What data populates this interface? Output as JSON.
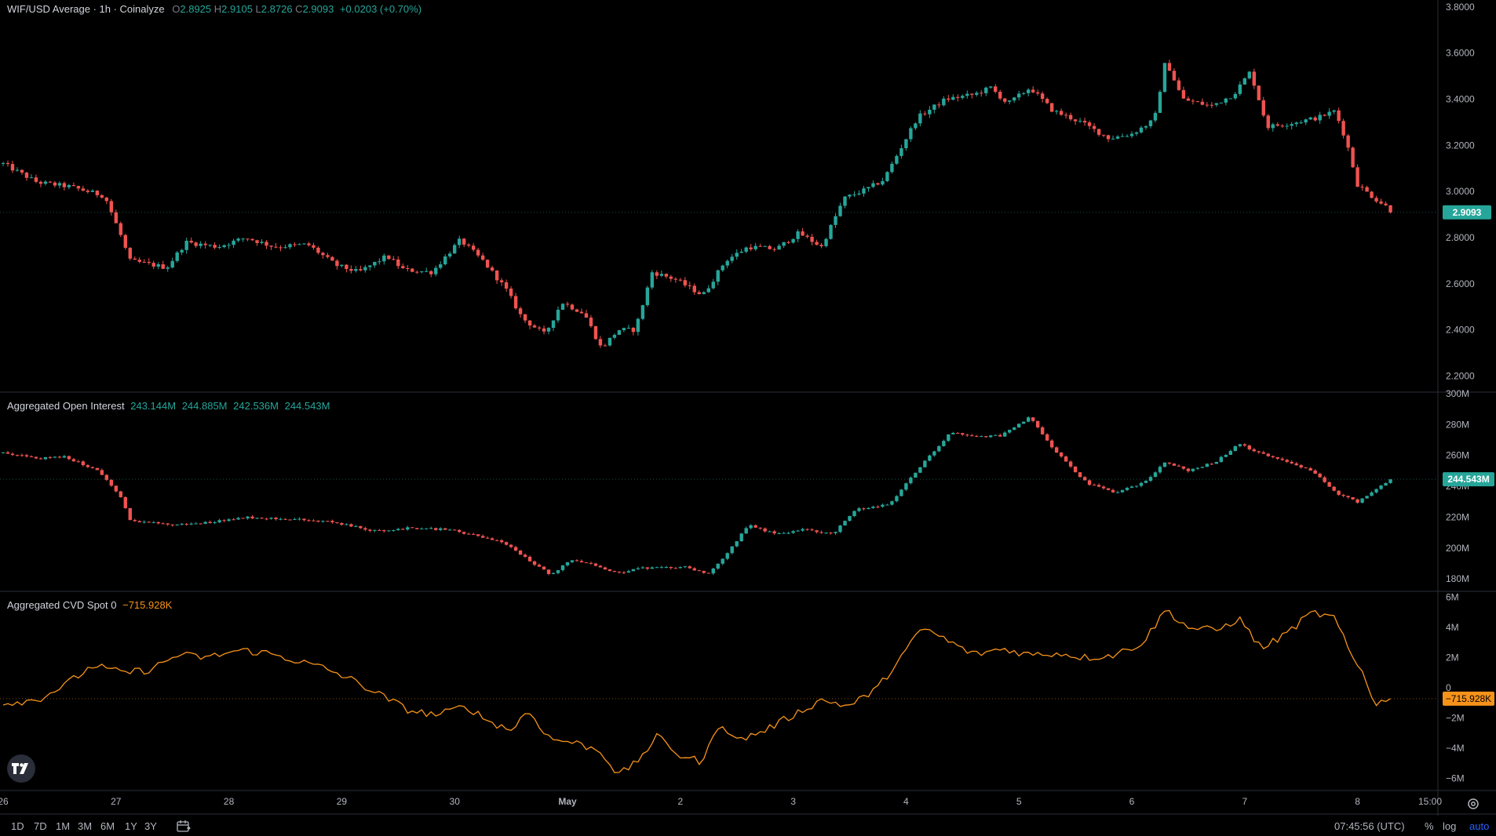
{
  "header": {
    "symbol": "WIF/USD Average · 1h · Coinalyze",
    "open_label": "O",
    "open": "2.8925",
    "high_label": "H",
    "high": "2.9105",
    "low_label": "L",
    "low": "2.8726",
    "close_label": "C",
    "close": "2.9093",
    "change": "+0.0203 (+0.70%)"
  },
  "oi_legend": {
    "title": "Aggregated Open Interest",
    "values": [
      "243.144M",
      "244.885M",
      "242.536M",
      "244.543M"
    ]
  },
  "cvd_legend": {
    "title": "Aggregated CVD Spot 0",
    "value": "−715.928K"
  },
  "price_badge": "2.9093",
  "oi_badge": "244.543M",
  "cvd_badge": "−715.928K",
  "colors": {
    "up": "#26a69a",
    "down": "#ef5350",
    "cvd": "#f7931a",
    "bg": "#000000",
    "text": "#d1d4dc"
  },
  "toolbar": {
    "ranges": [
      "1D",
      "7D",
      "1M",
      "3M",
      "6M",
      "1Y",
      "3Y"
    ],
    "calendar_icon": "calendar-icon",
    "time": "07:45:56 (UTC)",
    "percent": "%",
    "log": "log",
    "auto": "auto"
  },
  "chart_data": [
    {
      "type": "candlestick",
      "title": "WIF/USD Average · 1h · Coinalyze",
      "x_ticks": [
        "26",
        "27",
        "28",
        "29",
        "30",
        "May",
        "2",
        "3",
        "4",
        "5",
        "6",
        "7",
        "8",
        "15:00"
      ],
      "y_ticks": [
        "2.2000",
        "2.4000",
        "2.6000",
        "2.8000",
        "3.0000",
        "3.2000",
        "3.4000",
        "3.6000",
        "3.8000"
      ],
      "ylim": [
        2.13,
        3.83
      ],
      "x_range_days": [
        0,
        12.6
      ],
      "last": 2.9093,
      "path": [
        [
          0.0,
          3.12
        ],
        [
          0.3,
          3.04
        ],
        [
          0.6,
          3.02
        ],
        [
          0.9,
          2.98
        ],
        [
          1.05,
          2.8
        ],
        [
          1.12,
          2.7
        ],
        [
          1.45,
          2.67
        ],
        [
          1.62,
          2.78
        ],
        [
          1.9,
          2.76
        ],
        [
          2.15,
          2.8
        ],
        [
          2.4,
          2.76
        ],
        [
          2.7,
          2.77
        ],
        [
          2.95,
          2.68
        ],
        [
          3.15,
          2.65
        ],
        [
          3.4,
          2.72
        ],
        [
          3.55,
          2.66
        ],
        [
          3.8,
          2.65
        ],
        [
          4.05,
          2.79
        ],
        [
          4.25,
          2.7
        ],
        [
          4.45,
          2.58
        ],
        [
          4.6,
          2.45
        ],
        [
          4.8,
          2.38
        ],
        [
          4.95,
          2.52
        ],
        [
          5.15,
          2.47
        ],
        [
          5.3,
          2.32
        ],
        [
          5.45,
          2.4
        ],
        [
          5.6,
          2.4
        ],
        [
          5.75,
          2.65
        ],
        [
          5.95,
          2.62
        ],
        [
          6.2,
          2.55
        ],
        [
          6.4,
          2.7
        ],
        [
          6.6,
          2.76
        ],
        [
          6.85,
          2.75
        ],
        [
          7.05,
          2.82
        ],
        [
          7.25,
          2.76
        ],
        [
          7.45,
          2.97
        ],
        [
          7.65,
          3.01
        ],
        [
          7.8,
          3.05
        ],
        [
          8.1,
          3.32
        ],
        [
          8.35,
          3.4
        ],
        [
          8.6,
          3.42
        ],
        [
          8.75,
          3.45
        ],
        [
          8.9,
          3.38
        ],
        [
          9.1,
          3.45
        ],
        [
          9.3,
          3.35
        ],
        [
          9.55,
          3.3
        ],
        [
          9.8,
          3.23
        ],
        [
          10.0,
          3.25
        ],
        [
          10.2,
          3.31
        ],
        [
          10.3,
          3.57
        ],
        [
          10.45,
          3.4
        ],
        [
          10.7,
          3.37
        ],
        [
          10.9,
          3.42
        ],
        [
          11.05,
          3.52
        ],
        [
          11.2,
          3.28
        ],
        [
          11.45,
          3.3
        ],
        [
          11.65,
          3.32
        ],
        [
          11.8,
          3.35
        ],
        [
          11.9,
          3.22
        ],
        [
          12.0,
          3.03
        ],
        [
          12.15,
          2.97
        ],
        [
          12.3,
          2.92
        ],
        [
          12.33,
          2.9093
        ]
      ]
    },
    {
      "type": "candlestick",
      "title": "Aggregated Open Interest",
      "x_ticks": [
        "26",
        "27",
        "28",
        "29",
        "30",
        "May",
        "2",
        "3",
        "4",
        "5",
        "6",
        "7",
        "8",
        "15:00"
      ],
      "y_ticks": [
        "180M",
        "200M",
        "220M",
        "240M",
        "260M",
        "280M",
        "300M"
      ],
      "ylim": [
        172,
        301
      ],
      "last": 244.543,
      "path": [
        [
          0.0,
          262
        ],
        [
          0.3,
          258
        ],
        [
          0.55,
          259
        ],
        [
          0.85,
          250
        ],
        [
          1.05,
          232
        ],
        [
          1.12,
          218
        ],
        [
          1.5,
          215
        ],
        [
          1.75,
          216
        ],
        [
          2.15,
          220
        ],
        [
          2.5,
          219
        ],
        [
          2.9,
          217
        ],
        [
          3.3,
          211
        ],
        [
          3.6,
          213
        ],
        [
          3.95,
          212
        ],
        [
          4.25,
          207
        ],
        [
          4.45,
          203
        ],
        [
          4.7,
          190
        ],
        [
          4.85,
          183
        ],
        [
          5.05,
          193
        ],
        [
          5.45,
          184
        ],
        [
          5.65,
          187
        ],
        [
          5.85,
          187
        ],
        [
          6.05,
          188
        ],
        [
          6.25,
          183
        ],
        [
          6.45,
          200
        ],
        [
          6.6,
          215
        ],
        [
          6.85,
          209
        ],
        [
          7.1,
          212
        ],
        [
          7.35,
          209
        ],
        [
          7.55,
          225
        ],
        [
          7.85,
          228
        ],
        [
          8.15,
          255
        ],
        [
          8.4,
          275
        ],
        [
          8.65,
          272
        ],
        [
          8.85,
          273
        ],
        [
          9.1,
          285
        ],
        [
          9.3,
          265
        ],
        [
          9.6,
          242
        ],
        [
          9.85,
          236
        ],
        [
          10.1,
          242
        ],
        [
          10.3,
          256
        ],
        [
          10.5,
          250
        ],
        [
          10.75,
          256
        ],
        [
          10.95,
          268
        ],
        [
          11.1,
          262
        ],
        [
          11.35,
          257
        ],
        [
          11.6,
          250
        ],
        [
          11.8,
          236
        ],
        [
          12.0,
          230
        ],
        [
          12.3,
          244.5
        ]
      ]
    },
    {
      "type": "line",
      "title": "Aggregated CVD Spot 0",
      "x_ticks": [
        "26",
        "27",
        "28",
        "29",
        "30",
        "May",
        "2",
        "3",
        "4",
        "5",
        "6",
        "7",
        "8",
        "15:00"
      ],
      "y_ticks": [
        "−6M",
        "−4M",
        "−2M",
        "0",
        "2M",
        "4M",
        "6M"
      ],
      "ylim": [
        -6.8,
        6.4
      ],
      "last": -0.715928,
      "points": [
        [
          0,
          -1.0
        ],
        [
          0.3,
          -0.8
        ],
        [
          0.55,
          0.2
        ],
        [
          0.8,
          1.5
        ],
        [
          1.05,
          1.0
        ],
        [
          1.3,
          1.2
        ],
        [
          1.55,
          2.2
        ],
        [
          1.8,
          2.0
        ],
        [
          2.1,
          2.5
        ],
        [
          2.35,
          2.3
        ],
        [
          2.6,
          1.8
        ],
        [
          2.85,
          1.3
        ],
        [
          3.1,
          0.5
        ],
        [
          3.35,
          -0.5
        ],
        [
          3.6,
          -1.5
        ],
        [
          3.85,
          -1.8
        ],
        [
          4.1,
          -1.2
        ],
        [
          4.3,
          -2.2
        ],
        [
          4.5,
          -2.8
        ],
        [
          4.65,
          -1.5
        ],
        [
          4.85,
          -3.4
        ],
        [
          5.05,
          -3.6
        ],
        [
          5.3,
          -4.2
        ],
        [
          5.45,
          -5.8
        ],
        [
          5.6,
          -5.0
        ],
        [
          5.8,
          -3.2
        ],
        [
          6.0,
          -4.5
        ],
        [
          6.2,
          -4.9
        ],
        [
          6.35,
          -2.2
        ],
        [
          6.5,
          -3.5
        ],
        [
          6.75,
          -2.8
        ],
        [
          7.0,
          -1.8
        ],
        [
          7.25,
          -0.8
        ],
        [
          7.5,
          -1.2
        ],
        [
          7.75,
          0.0
        ],
        [
          7.95,
          2.0
        ],
        [
          8.15,
          4.0
        ],
        [
          8.35,
          3.2
        ],
        [
          8.6,
          2.2
        ],
        [
          8.85,
          2.6
        ],
        [
          9.1,
          2.2
        ],
        [
          9.35,
          2.3
        ],
        [
          9.6,
          2.0
        ],
        [
          9.85,
          2.2
        ],
        [
          10.1,
          3.0
        ],
        [
          10.3,
          5.2
        ],
        [
          10.5,
          4.0
        ],
        [
          10.75,
          3.8
        ],
        [
          10.95,
          4.6
        ],
        [
          11.15,
          2.6
        ],
        [
          11.35,
          3.5
        ],
        [
          11.6,
          5.0
        ],
        [
          11.8,
          4.6
        ],
        [
          11.95,
          2.0
        ],
        [
          12.05,
          1.0
        ],
        [
          12.15,
          -1.0
        ],
        [
          12.33,
          -0.715928
        ]
      ]
    }
  ]
}
